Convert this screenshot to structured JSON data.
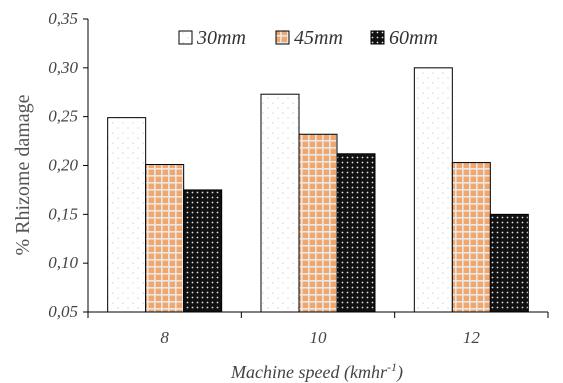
{
  "chart_data": {
    "type": "bar",
    "categories": [
      "8",
      "10",
      "12"
    ],
    "series": [
      {
        "name": "30mm",
        "values": [
          0.249,
          0.273,
          0.3
        ],
        "pattern": "dots-light",
        "color": "#ffffff"
      },
      {
        "name": "45mm",
        "values": [
          0.201,
          0.232,
          0.203
        ],
        "pattern": "grid-orange",
        "color": "#f2a66b"
      },
      {
        "name": "60mm",
        "values": [
          0.175,
          0.212,
          0.15
        ],
        "pattern": "dots-dark",
        "color": "#1a1a1a"
      }
    ],
    "ylim": [
      0.05,
      0.35
    ],
    "yticks": [
      "0,05",
      "0,10",
      "0,15",
      "0,20",
      "0,25",
      "0,30",
      "0,35"
    ],
    "ylabel": "% Rhizome damage",
    "xlabel_main": "Machine speed (kmhr",
    "xlabel_sup": "-1",
    "xlabel_end": ")",
    "legend_position": "top-center",
    "grid": false
  }
}
